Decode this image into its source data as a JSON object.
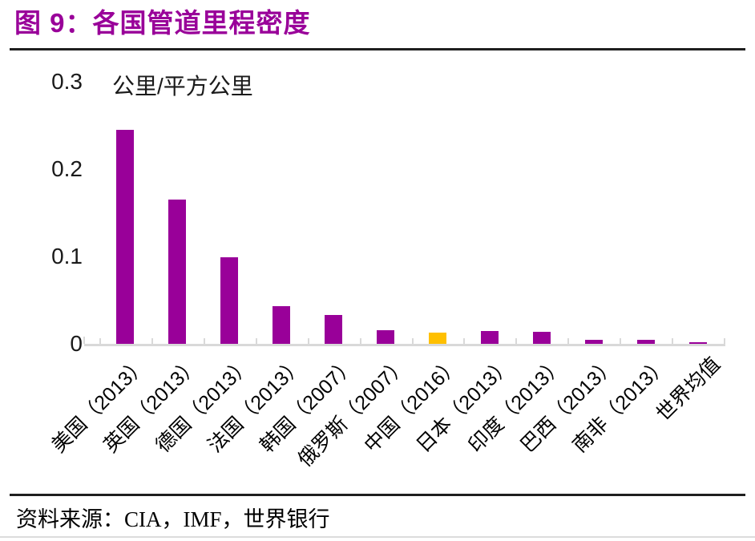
{
  "figure": {
    "title": "图 9：各国管道里程密度",
    "source_label": "资料来源：CIA，IMF，世界银行"
  },
  "chart_data": {
    "type": "bar",
    "title": "图 9：各国管道里程密度",
    "unit_label": "公里/平方公里",
    "categories": [
      "美国（2013）",
      "英国（2013）",
      "德国（2013）",
      "法国（2013）",
      "韩国（2007）",
      "俄罗斯（2007）",
      "中国（2016）",
      "日本（2013）",
      "印度（2013）",
      "巴西（2013）",
      "南非（2013）",
      "世界均值"
    ],
    "values": [
      0.245,
      0.165,
      0.099,
      0.043,
      0.033,
      0.016,
      0.013,
      0.015,
      0.014,
      0.005,
      0.005,
      0.002
    ],
    "bar_color": "#990099",
    "highlight": {
      "index": 6,
      "category": "中国（2016）",
      "color": "#FFC000"
    },
    "ylim": [
      0,
      0.3
    ],
    "yticks": [
      {
        "value": 0.0,
        "label": "0"
      },
      {
        "value": 0.1,
        "label": "0.1"
      },
      {
        "value": 0.2,
        "label": "0.2"
      },
      {
        "value": 0.3,
        "label": "0.3"
      }
    ],
    "xlabel": "",
    "ylabel": "公里/平方公里",
    "grid": false,
    "legend_position": "none",
    "x_label_rotation_deg": 45
  },
  "colors": {
    "title": "#990099",
    "divider": "#1f1f1f",
    "axis": "#d9d9d9",
    "page_border": "#dcdcdc",
    "text": "#000000"
  },
  "source_text": "资料来源：CIA，IMF，世界银行"
}
